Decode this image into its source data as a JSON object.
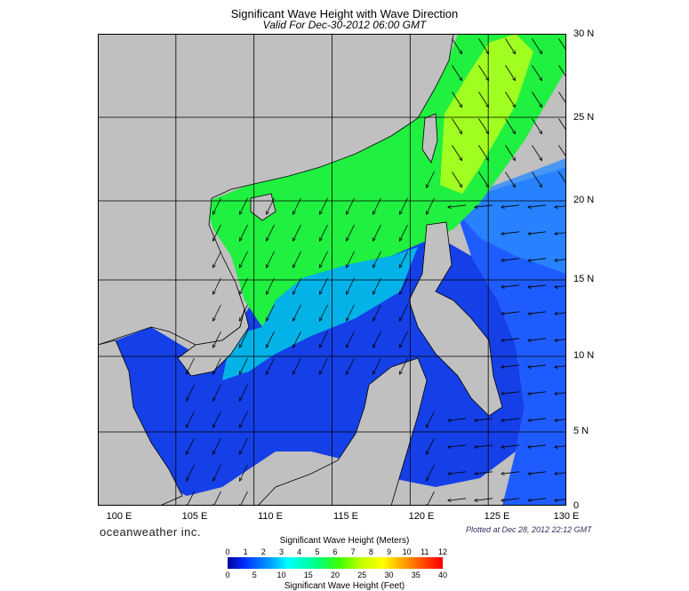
{
  "header": {
    "title": "Significant Wave Height with Wave Direction",
    "subtitle": "Valid For Dec-30-2012 06:00 GMT"
  },
  "axes": {
    "lat_labels": [
      "30 N",
      "25 N",
      "20 N",
      "15 N",
      "10 N",
      "5 N",
      "0"
    ],
    "lon_labels": [
      "100 E",
      "105 E",
      "110 E",
      "115 E",
      "120 E",
      "125 E",
      "130 E"
    ]
  },
  "footer": {
    "brand": "oceanweather inc.",
    "plotted": "Plotted at Dec 28, 2012 22:12 GMT"
  },
  "legend": {
    "meters_title": "Significant Wave Height (Meters)",
    "feet_title": "Significant Wave Height (Feet)",
    "meters_ticks": [
      "0",
      "1",
      "2",
      "3",
      "4",
      "5",
      "6",
      "7",
      "8",
      "9",
      "10",
      "11",
      "12"
    ],
    "feet_ticks": [
      "0",
      "5",
      "10",
      "15",
      "20",
      "25",
      "30",
      "35",
      "40"
    ]
  },
  "colors": {
    "land": "#c0c0c0",
    "coast": "#000000",
    "grid": "#000000",
    "scale": [
      "#0000a0",
      "#0030ff",
      "#00a0ff",
      "#00ffff",
      "#00ff80",
      "#40ff00",
      "#c0ff00",
      "#ffff00",
      "#ffa000",
      "#ff4000",
      "#ff0000"
    ]
  }
}
